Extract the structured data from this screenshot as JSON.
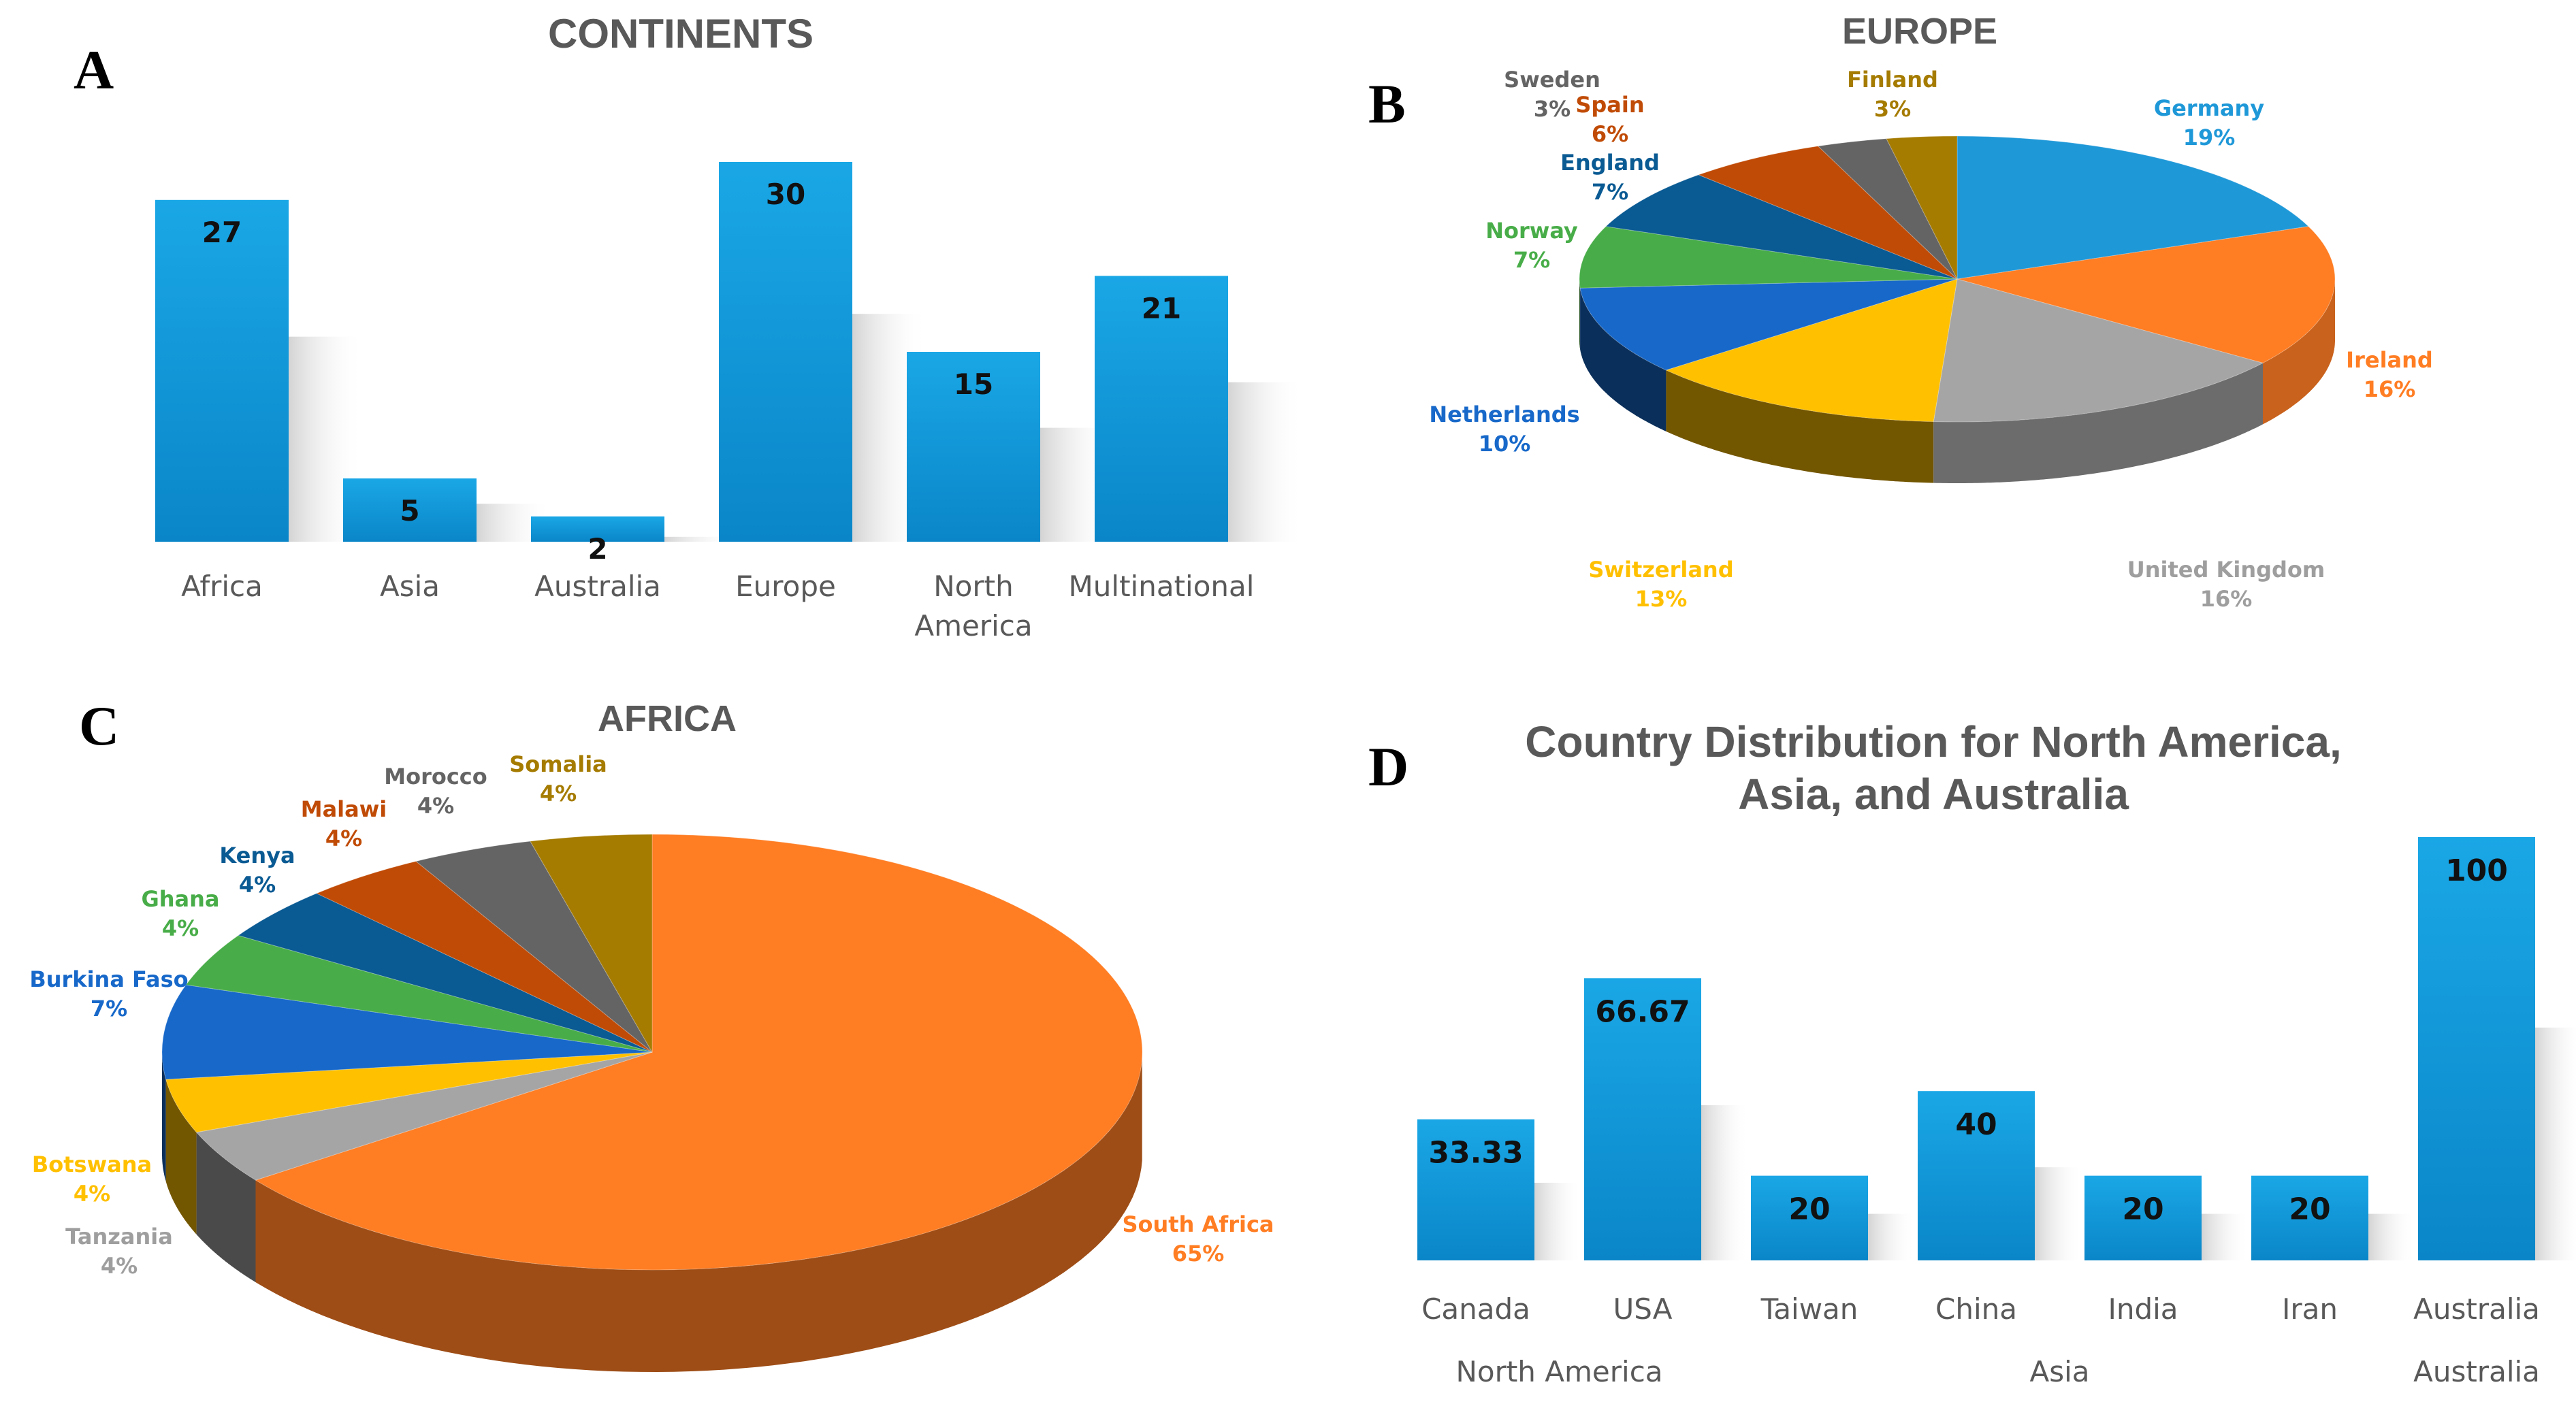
{
  "chart_data": [
    {
      "panel": "A",
      "type": "bar",
      "title": "CONTINENTS",
      "categories": [
        "Africa",
        "Asia",
        "Australia",
        "Europe",
        "North America",
        "Multinational"
      ],
      "values": [
        27,
        5,
        2,
        30,
        15,
        21
      ],
      "xlabel": "",
      "ylabel": "",
      "ylim": [
        0,
        30
      ]
    },
    {
      "panel": "B",
      "type": "pie",
      "title": "EUROPE",
      "slices": [
        {
          "label": "Germany",
          "value": 19,
          "pct": "19%",
          "color": "#1f98d8"
        },
        {
          "label": "Ireland",
          "value": 16,
          "pct": "16%",
          "color": "#ff7d23"
        },
        {
          "label": "United Kingdom",
          "value": 16,
          "pct": "16%",
          "color": "#a5a5a5"
        },
        {
          "label": "Switzerland",
          "value": 13,
          "pct": "13%",
          "color": "#ffc000"
        },
        {
          "label": "Netherlands",
          "value": 10,
          "pct": "10%",
          "color": "#1768c9"
        },
        {
          "label": "Norway",
          "value": 7,
          "pct": "7%",
          "color": "#48ad48"
        },
        {
          "label": "England",
          "value": 7,
          "pct": "7%",
          "color": "#0a5a93"
        },
        {
          "label": "Spain",
          "value": 6,
          "pct": "6%",
          "color": "#c04b06"
        },
        {
          "label": "Sweden",
          "value": 3,
          "pct": "3%",
          "color": "#646464"
        },
        {
          "label": "Finland",
          "value": 3,
          "pct": "3%",
          "color": "#a57b00"
        }
      ]
    },
    {
      "panel": "C",
      "type": "pie",
      "title": "AFRICA",
      "slices": [
        {
          "label": "South Africa",
          "value": 65,
          "pct": "65%",
          "color": "#ff7d23"
        },
        {
          "label": "Tanzania",
          "value": 4,
          "pct": "4%",
          "color": "#a5a5a5"
        },
        {
          "label": "Botswana",
          "value": 4,
          "pct": "4%",
          "color": "#ffc000"
        },
        {
          "label": "Burkina Faso",
          "value": 7,
          "pct": "7%",
          "color": "#1768c9"
        },
        {
          "label": "Ghana",
          "value": 4,
          "pct": "4%",
          "color": "#48ad48"
        },
        {
          "label": "Kenya",
          "value": 4,
          "pct": "4%",
          "color": "#0a5a93"
        },
        {
          "label": "Malawi",
          "value": 4,
          "pct": "4%",
          "color": "#c04b06"
        },
        {
          "label": "Morocco",
          "value": 4,
          "pct": "4%",
          "color": "#646464"
        },
        {
          "label": "Somalia",
          "value": 4,
          "pct": "4%",
          "color": "#a57b00"
        }
      ]
    },
    {
      "panel": "D",
      "type": "bar",
      "title": "Country Distribution for North America, Asia, and Australia",
      "categories": [
        "Canada",
        "USA",
        "Taiwan",
        "China",
        "India",
        "Iran",
        "Australia"
      ],
      "groups": [
        {
          "name": "North America",
          "members": [
            "Canada",
            "USA"
          ]
        },
        {
          "name": "Asia",
          "members": [
            "Taiwan",
            "China",
            "India",
            "Iran"
          ]
        },
        {
          "name": "Australia",
          "members": [
            "Australia"
          ]
        }
      ],
      "values": [
        33.33,
        66.67,
        20,
        40,
        20,
        20,
        100
      ],
      "value_labels": [
        "33.33",
        "66.67",
        "20",
        "40",
        "20",
        "20",
        "100"
      ],
      "xlabel": "",
      "ylabel": "",
      "ylim": [
        0,
        100
      ]
    }
  ],
  "colors": {
    "bar_top": "#1aa7e6",
    "bar_bottom": "#0a86c8",
    "title": "#595959",
    "axis_text": "#595959"
  }
}
